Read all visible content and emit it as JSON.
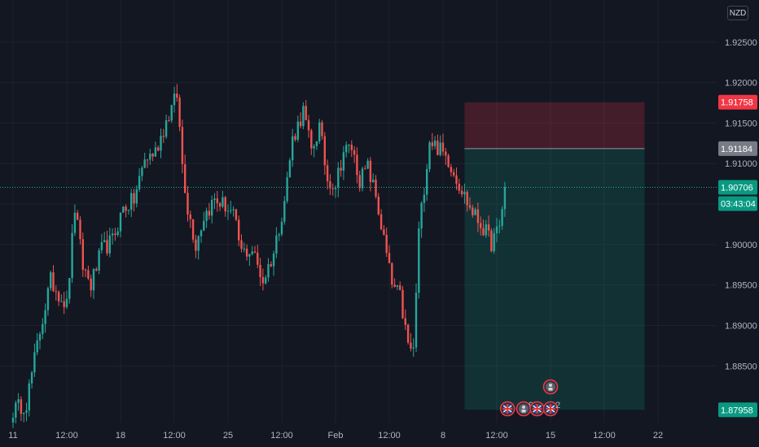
{
  "currency": "NZD",
  "chart_data": {
    "type": "candlestick",
    "ylim": [
      1.878,
      1.9295
    ],
    "y_ticks": [
      "1.88500",
      "1.89000",
      "1.89500",
      "1.90000",
      "1.90500",
      "1.91000",
      "1.91500",
      "1.92000",
      "1.92500"
    ],
    "y_tick_values": [
      1.885,
      1.89,
      1.895,
      1.9,
      1.905,
      1.91,
      1.915,
      1.92,
      1.925
    ],
    "x_ticks": [
      "11",
      "12:00",
      "18",
      "12:00",
      "25",
      "12:00",
      "Feb",
      "12:00",
      "8",
      "12:00",
      "15",
      "12:00",
      "22"
    ],
    "x_tick_index": [
      0,
      20,
      40,
      60,
      80,
      100,
      120,
      140,
      160,
      180,
      200,
      220,
      240
    ],
    "current_price": "1.90706",
    "countdown": "03:43:04",
    "position": {
      "type": "short",
      "entry": "1.91184",
      "stop": "1.91758",
      "target": "1.87958",
      "entry_value": 1.91184,
      "stop_value": 1.91758,
      "target_value": 1.87958,
      "start_index": 168,
      "end_index": 235
    },
    "events": [
      {
        "kind": "flag-uk",
        "index": 184,
        "count": ""
      },
      {
        "kind": "figure",
        "index": 190,
        "count": "9"
      },
      {
        "kind": "flag-uk",
        "index": 195,
        "count": ""
      },
      {
        "kind": "flag-uk",
        "index": 200,
        "count": "2"
      },
      {
        "kind": "figure",
        "index": 200,
        "count": ""
      }
    ],
    "anchors": [
      [
        0,
        1.8795
      ],
      [
        5,
        1.8805
      ],
      [
        10,
        1.8893
      ],
      [
        14,
        1.8955
      ],
      [
        20,
        1.8925
      ],
      [
        23,
        1.9045
      ],
      [
        26,
        1.8973
      ],
      [
        29,
        1.895
      ],
      [
        33,
        1.8993
      ],
      [
        37,
        1.9005
      ],
      [
        41,
        1.9045
      ],
      [
        45,
        1.9055
      ],
      [
        49,
        1.9105
      ],
      [
        53,
        1.9115
      ],
      [
        57,
        1.9152
      ],
      [
        61,
        1.9185
      ],
      [
        63,
        1.91
      ],
      [
        65,
        1.9045
      ],
      [
        68,
        1.9
      ],
      [
        71,
        1.9035
      ],
      [
        75,
        1.9055
      ],
      [
        79,
        1.9048
      ],
      [
        82,
        1.9035
      ],
      [
        85,
        1.899
      ],
      [
        89,
        1.8993
      ],
      [
        93,
        1.8955
      ],
      [
        97,
        1.899
      ],
      [
        101,
        1.9055
      ],
      [
        104,
        1.913
      ],
      [
        108,
        1.9165
      ],
      [
        111,
        1.9115
      ],
      [
        114,
        1.9145
      ],
      [
        117,
        1.908
      ],
      [
        120,
        1.9075
      ],
      [
        123,
        1.9115
      ],
      [
        126,
        1.912
      ],
      [
        129,
        1.908
      ],
      [
        132,
        1.9095
      ],
      [
        135,
        1.906
      ],
      [
        138,
        1.9005
      ],
      [
        141,
        1.895
      ],
      [
        144,
        1.8935
      ],
      [
        147,
        1.8875
      ],
      [
        149,
        1.8868
      ],
      [
        151,
        1.9015
      ],
      [
        155,
        1.913
      ],
      [
        158,
        1.912
      ],
      [
        162,
        1.9105
      ],
      [
        166,
        1.9075
      ],
      [
        170,
        1.9045
      ],
      [
        175,
        1.902
      ],
      [
        178,
        1.9002
      ],
      [
        181,
        1.902
      ],
      [
        183,
        1.9071
      ]
    ]
  }
}
